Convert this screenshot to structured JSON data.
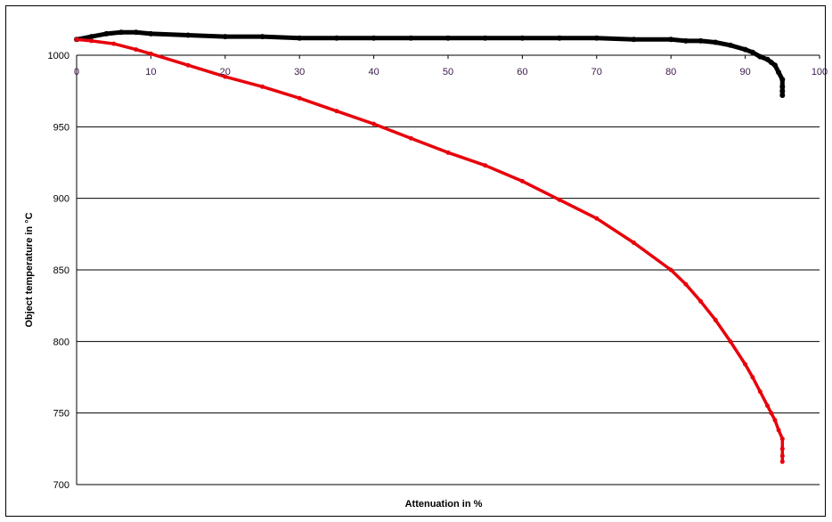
{
  "chart_data": {
    "type": "scatter",
    "title": "",
    "xlabel": "Attenuation in %",
    "ylabel": "Object temperature in °C",
    "xlim": [
      0,
      100
    ],
    "ylim": [
      700,
      1025
    ],
    "xticks": [
      0,
      10,
      20,
      30,
      40,
      50,
      60,
      70,
      80,
      90,
      100
    ],
    "yticks": [
      700,
      750,
      800,
      850,
      900,
      950,
      1000
    ],
    "grid": "horizontal",
    "legend": "none",
    "series": [
      {
        "color": "#000000",
        "x": [
          0,
          2,
          4,
          6,
          8,
          10,
          15,
          20,
          25,
          30,
          35,
          40,
          45,
          50,
          55,
          60,
          65,
          70,
          75,
          80,
          82,
          84,
          86,
          88,
          90,
          91,
          92,
          93,
          93.5,
          94,
          94.5,
          95,
          95,
          95,
          95
        ],
        "y": [
          1011,
          1013,
          1015,
          1016,
          1016,
          1015,
          1014,
          1013,
          1013,
          1012,
          1012,
          1012,
          1012,
          1012,
          1012,
          1012,
          1012,
          1012,
          1011,
          1011,
          1010,
          1010,
          1009,
          1007,
          1004,
          1002,
          999,
          997,
          995,
          993,
          988,
          983,
          978,
          975,
          972
        ]
      },
      {
        "color": "#e8000b",
        "x": [
          0,
          2,
          5,
          8,
          10,
          15,
          20,
          25,
          30,
          35,
          40,
          45,
          50,
          55,
          60,
          65,
          70,
          75,
          80,
          82,
          84,
          86,
          88,
          90,
          91,
          92,
          93,
          93.5,
          94,
          94.5,
          95,
          95,
          95,
          95
        ],
        "y": [
          1011,
          1010,
          1008,
          1004,
          1001,
          993,
          985,
          978,
          970,
          961,
          952,
          942,
          932,
          923,
          912,
          899,
          886,
          869,
          850,
          840,
          828,
          815,
          800,
          784,
          775,
          765,
          755,
          750,
          745,
          738,
          732,
          725,
          720,
          716
        ]
      }
    ]
  }
}
